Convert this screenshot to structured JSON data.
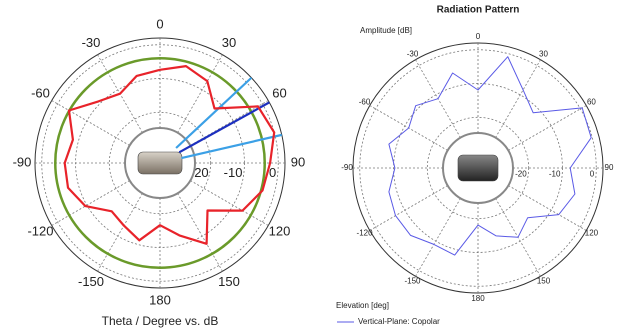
{
  "chart_data": [
    {
      "type": "polar",
      "x_label": "Theta / Degree vs. dB",
      "theta": [
        -180,
        -165,
        -150,
        -135,
        -120,
        -105,
        -90,
        -75,
        -60,
        -45,
        -30,
        -15,
        0,
        15,
        30,
        45,
        60,
        75,
        90,
        105,
        120,
        135,
        150,
        165
      ],
      "series": [
        {
          "color": "#e8232a",
          "values": [
            -16.6,
            -11.3,
            -13.6,
            -14.8,
            -9.5,
            -6.8,
            -6.8,
            -8.3,
            -3.9,
            -9.2,
            -11.3,
            -8.3,
            -7.4,
            -5.3,
            -7.0,
            -12.2,
            -1.5,
            0,
            -2.4,
            -3.6,
            -6.8,
            -15.1,
            -7.4,
            -12.8
          ]
        }
      ],
      "rlim": [
        -35,
        2
      ],
      "rticks": [
        -20,
        -10,
        0
      ],
      "thetaticks": [
        -150,
        -120,
        -90,
        -60,
        -30,
        0,
        30,
        60,
        90,
        120,
        150,
        180
      ],
      "reference_circle": {
        "value": -4,
        "color": "#6a9a2a"
      },
      "rays": [
        {
          "value": 47,
          "color": "#3ba0e6"
        },
        {
          "value": 61,
          "color": "#1c2fbf"
        },
        {
          "value": 77,
          "color": "#3ba0e6"
        }
      ]
    },
    {
      "type": "polar",
      "title": "Radiation Pattern",
      "r_label": "Amplitude [dB]",
      "theta_label": "Elevation [deg]",
      "theta": [
        -180,
        -165,
        -150,
        -135,
        -120,
        -105,
        -90,
        -75,
        -60,
        -45,
        -30,
        -15,
        0,
        15,
        30,
        45,
        60,
        75,
        90,
        105,
        120,
        135,
        150,
        165
      ],
      "series": [
        {
          "name": "Vertical-Plane: Copolar",
          "color": "#5a5ae6",
          "values": [
            -18.1,
            -8.3,
            -8.9,
            -6.8,
            -6.8,
            -7.7,
            -10.4,
            -7.7,
            -11.3,
            -8.9,
            -11.3,
            -5.9,
            -11.9,
            -0.9,
            -8.3,
            -11.9,
            0.6,
            -0.3,
            -7.7,
            -5.3,
            -7.4,
            -14.2,
            -11.3,
            -14.2
          ]
        }
      ],
      "rlim": [
        -35,
        2
      ],
      "rticks": [
        -20,
        -10,
        0
      ],
      "thetaticks": [
        -150,
        -120,
        -90,
        -60,
        -30,
        0,
        30,
        60,
        90,
        120,
        150,
        180
      ]
    }
  ]
}
